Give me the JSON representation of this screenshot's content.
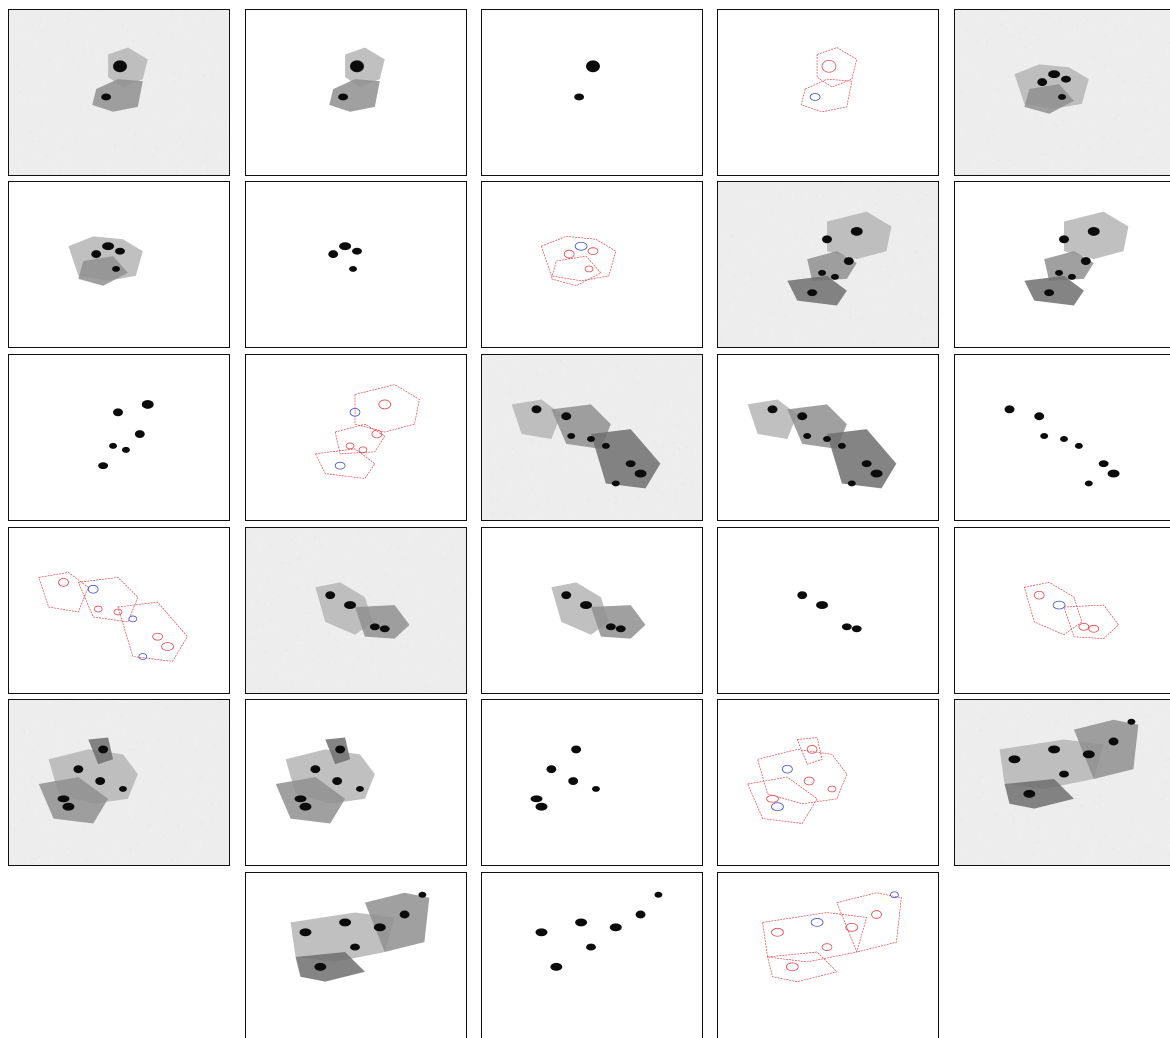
{
  "gallery": {
    "rows": 6,
    "columns": 5,
    "background": "#ffffff",
    "tile_border_color": "#111111",
    "kinds": {
      "original": {
        "description_color": "#efefef"
      },
      "cytoplasm": {
        "description_color": "#ffffff"
      },
      "nucleus_mask": {
        "description_color": "#ffffff"
      },
      "contour_overlay": {
        "description_color": "#ffffff"
      }
    },
    "colors": {
      "cell_light": "#b5b5b5",
      "cell_mid": "#8f8f8f",
      "cell_dark": "#6e6e6e",
      "nucleus": "#0b0b0b",
      "contour_red": "#e8434b",
      "contour_blue": "#3a4fd0",
      "noise_bg": "#ededed"
    },
    "tiles": [
      {
        "kind": "original",
        "group": 1
      },
      {
        "kind": "cytoplasm",
        "group": 1
      },
      {
        "kind": "nucleus_mask",
        "group": 1
      },
      {
        "kind": "contour_overlay",
        "group": 1
      },
      {
        "kind": "original",
        "group": 2
      },
      {
        "kind": "cytoplasm",
        "group": 2
      },
      {
        "kind": "nucleus_mask",
        "group": 2
      },
      {
        "kind": "contour_overlay",
        "group": 2
      },
      {
        "kind": "original",
        "group": 3
      },
      {
        "kind": "cytoplasm",
        "group": 3
      },
      {
        "kind": "nucleus_mask",
        "group": 3
      },
      {
        "kind": "contour_overlay",
        "group": 3
      },
      {
        "kind": "original",
        "group": 4
      },
      {
        "kind": "cytoplasm",
        "group": 4
      },
      {
        "kind": "nucleus_mask",
        "group": 4
      },
      {
        "kind": "contour_overlay",
        "group": 4
      },
      {
        "kind": "original",
        "group": 5
      },
      {
        "kind": "cytoplasm",
        "group": 5
      },
      {
        "kind": "nucleus_mask",
        "group": 5
      },
      {
        "kind": "contour_overlay",
        "group": 5
      },
      {
        "kind": "original",
        "group": 6
      },
      {
        "kind": "cytoplasm",
        "group": 6
      },
      {
        "kind": "nucleus_mask",
        "group": 6
      },
      {
        "kind": "contour_overlay",
        "group": 6
      },
      {
        "kind": "original",
        "group": 7
      },
      {
        "kind": "empty",
        "group": 0
      },
      {
        "kind": "cytoplasm",
        "group": 7
      },
      {
        "kind": "nucleus_mask",
        "group": 7
      },
      {
        "kind": "contour_overlay",
        "group": 7
      },
      {
        "kind": "empty",
        "group": 0
      }
    ]
  }
}
